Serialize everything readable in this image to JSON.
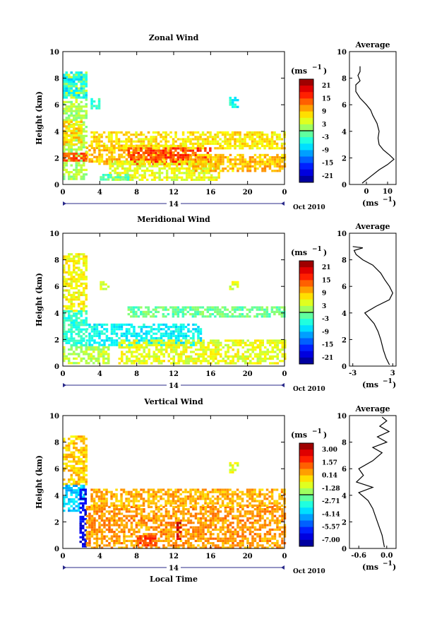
{
  "chart_data": [
    {
      "type": "heatmap",
      "title": "Zonal Wind",
      "ylabel": "Height (km)",
      "xlabel": "",
      "xlim": [
        0,
        24
      ],
      "ylim": [
        0,
        10
      ],
      "x_ticks": [
        "0",
        "4",
        "8",
        "12",
        "16",
        "20",
        "0"
      ],
      "y_ticks": [
        "0",
        "2",
        "4",
        "6",
        "8",
        "10"
      ],
      "date_day": "14",
      "date_label": "Oct 2010",
      "colorbar": {
        "unit": "(ms",
        "unit_exp": "−1",
        "unit_close": ")",
        "ticks": [
          "21",
          "15",
          "9",
          "3",
          "-3",
          "-9",
          "-15",
          "-21"
        ],
        "range": [
          -24,
          24
        ]
      },
      "fields": [
        {
          "x": [
            0,
            2.5
          ],
          "y": [
            0.5,
            8.5
          ],
          "value": 2
        },
        {
          "x": [
            0,
            2.5
          ],
          "y": [
            6.5,
            8.5
          ],
          "value": -6
        },
        {
          "x": [
            0,
            2.0
          ],
          "y": [
            3.0,
            4.8
          ],
          "value": 8
        },
        {
          "x": [
            0,
            2.5
          ],
          "y": [
            1.8,
            2.4
          ],
          "value": 14
        },
        {
          "x": [
            2.5,
            14
          ],
          "y": [
            1.5,
            3.0
          ],
          "value": 9
        },
        {
          "x": [
            3,
            24
          ],
          "y": [
            2.8,
            4.0
          ],
          "value": 7
        },
        {
          "x": [
            7,
            16
          ],
          "y": [
            1.5,
            2.8
          ],
          "value": 15
        },
        {
          "x": [
            5,
            17
          ],
          "y": [
            0.3,
            1.8
          ],
          "value": 5
        },
        {
          "x": [
            14,
            24
          ],
          "y": [
            1.0,
            2.3
          ],
          "value": 9
        },
        {
          "x": [
            4,
            7
          ],
          "y": [
            0.3,
            0.8
          ],
          "value": -2
        },
        {
          "x": [
            18,
            19
          ],
          "y": [
            5.9,
            6.6
          ],
          "value": -5
        },
        {
          "x": [
            3,
            4
          ],
          "y": [
            5.8,
            6.5
          ],
          "value": -4
        }
      ],
      "profile": {
        "title": "Average",
        "x_ticks": [
          "0",
          "10"
        ],
        "xlabel": "(ms",
        "xlabel_exp": "−1",
        "xlabel_close": ")",
        "xlim": [
          -8,
          14
        ],
        "ylim": [
          0,
          10
        ],
        "y_ticks": [
          "0",
          "2",
          "4",
          "6",
          "8",
          "10"
        ],
        "points": [
          [
            -2,
            0.1
          ],
          [
            2,
            0.6
          ],
          [
            6,
            1.1
          ],
          [
            10,
            1.5
          ],
          [
            13,
            1.9
          ],
          [
            11,
            2.2
          ],
          [
            8,
            2.6
          ],
          [
            6,
            3
          ],
          [
            5.5,
            3.5
          ],
          [
            6,
            4
          ],
          [
            5,
            4.6
          ],
          [
            3,
            5.2
          ],
          [
            2,
            5.6
          ],
          [
            0,
            6
          ],
          [
            -3,
            6.5
          ],
          [
            -5,
            7
          ],
          [
            -5,
            7.5
          ],
          [
            -3,
            7.8
          ],
          [
            -4,
            8.2
          ],
          [
            -3,
            8.5
          ],
          [
            -3,
            8.9
          ]
        ]
      }
    },
    {
      "type": "heatmap",
      "title": "Meridional Wind",
      "ylabel": "Height (km)",
      "xlabel": "",
      "xlim": [
        0,
        24
      ],
      "ylim": [
        0,
        10
      ],
      "x_ticks": [
        "0",
        "4",
        "8",
        "12",
        "16",
        "20",
        "0"
      ],
      "y_ticks": [
        "0",
        "2",
        "4",
        "6",
        "8",
        "10"
      ],
      "date_day": "14",
      "date_label": "Oct 2010",
      "colorbar": {
        "unit": "(ms",
        "unit_exp": "−1",
        "unit_close": ")",
        "ticks": [
          "21",
          "15",
          "9",
          "3",
          "-3",
          "-9",
          "-15",
          "-21"
        ],
        "range": [
          -24,
          24
        ]
      },
      "fields": [
        {
          "x": [
            0,
            2.5
          ],
          "y": [
            4.2,
            8.5
          ],
          "value": 6
        },
        {
          "x": [
            0,
            2.5
          ],
          "y": [
            1.5,
            4.2
          ],
          "value": -4
        },
        {
          "x": [
            2.5,
            15
          ],
          "y": [
            1.5,
            3.2
          ],
          "value": -6
        },
        {
          "x": [
            6,
            24
          ],
          "y": [
            0.2,
            2.0
          ],
          "value": 5
        },
        {
          "x": [
            7,
            24
          ],
          "y": [
            3.8,
            4.5
          ],
          "value": -1
        },
        {
          "x": [
            0,
            5
          ],
          "y": [
            0.3,
            1.5
          ],
          "value": 3
        },
        {
          "x": [
            18,
            19
          ],
          "y": [
            5.8,
            6.4
          ],
          "value": 5
        },
        {
          "x": [
            4,
            5
          ],
          "y": [
            5.8,
            6.4
          ],
          "value": 4
        }
      ],
      "profile": {
        "title": "Average",
        "x_ticks": [
          "-3",
          "3"
        ],
        "xlabel": "(ms",
        "xlabel_exp": "−1",
        "xlabel_close": ")",
        "xlim": [
          -3.5,
          3.5
        ],
        "ylim": [
          0,
          10
        ],
        "y_ticks": [
          "0",
          "2",
          "4",
          "6",
          "8",
          "10"
        ],
        "points": [
          [
            2.5,
            0.1
          ],
          [
            2,
            0.6
          ],
          [
            1.6,
            1.2
          ],
          [
            1.2,
            2
          ],
          [
            0.8,
            2.6
          ],
          [
            0.2,
            3.2
          ],
          [
            -0.5,
            3.6
          ],
          [
            -1.2,
            4
          ],
          [
            0.5,
            4.5
          ],
          [
            2.5,
            5
          ],
          [
            3,
            5.5
          ],
          [
            2.5,
            6
          ],
          [
            1.8,
            6.5
          ],
          [
            1.2,
            7
          ],
          [
            0,
            7.6
          ],
          [
            -1.5,
            8
          ],
          [
            -2.5,
            8.4
          ],
          [
            -2.8,
            8.7
          ],
          [
            -1.5,
            8.9
          ],
          [
            -3,
            9
          ]
        ]
      }
    },
    {
      "type": "heatmap",
      "title": "Vertical Wind",
      "ylabel": "Height (km)",
      "xlabel": "Local Time",
      "xlim": [
        0,
        24
      ],
      "ylim": [
        0,
        10
      ],
      "x_ticks": [
        "0",
        "4",
        "8",
        "12",
        "16",
        "20",
        "0"
      ],
      "y_ticks": [
        "0",
        "2",
        "4",
        "6",
        "8",
        "10"
      ],
      "date_day": "14",
      "date_label": "Oct 2010",
      "colorbar": {
        "unit": "(ms",
        "unit_exp": "−1",
        "unit_close": ")",
        "ticks": [
          "3.00",
          "1.57",
          "0.14",
          "-1.28",
          "-2.71",
          "-4.14",
          "-5.57",
          "-7.00"
        ],
        "range": [
          -7.7,
          3.7
        ]
      },
      "fields": [
        {
          "x": [
            0,
            2.5
          ],
          "y": [
            4.8,
            8.5
          ],
          "value": 0
        },
        {
          "x": [
            0,
            2.2
          ],
          "y": [
            2.8,
            4.8
          ],
          "value": -4
        },
        {
          "x": [
            1.8,
            2.5
          ],
          "y": [
            0.2,
            4.5
          ],
          "value": -6.5
        },
        {
          "x": [
            2.5,
            24
          ],
          "y": [
            0.1,
            3.2
          ],
          "value": 0.6
        },
        {
          "x": [
            3,
            24
          ],
          "y": [
            3.2,
            4.5
          ],
          "value": 0.3
        },
        {
          "x": [
            8,
            10
          ],
          "y": [
            0.2,
            1.0
          ],
          "value": 1.5
        },
        {
          "x": [
            12.3,
            12.7
          ],
          "y": [
            0.8,
            2.0
          ],
          "value": 2.8
        },
        {
          "x": [
            18,
            19
          ],
          "y": [
            5.7,
            6.5
          ],
          "value": -0.8
        }
      ],
      "profile": {
        "title": "Average",
        "x_ticks": [
          "-0.6",
          "0.0"
        ],
        "xlabel": "(ms",
        "xlabel_exp": "−1",
        "xlabel_close": ")",
        "xlim": [
          -0.8,
          0.2
        ],
        "ylim": [
          0,
          10
        ],
        "y_ticks": [
          "0",
          "2",
          "4",
          "6",
          "8",
          "10"
        ],
        "points": [
          [
            -0.05,
            0.1
          ],
          [
            -0.1,
            1
          ],
          [
            -0.2,
            2
          ],
          [
            -0.3,
            3
          ],
          [
            -0.4,
            3.6
          ],
          [
            -0.6,
            4.2
          ],
          [
            -0.3,
            4.6
          ],
          [
            -0.65,
            5
          ],
          [
            -0.5,
            5.5
          ],
          [
            -0.6,
            6
          ],
          [
            -0.3,
            6.6
          ],
          [
            -0.1,
            7.2
          ],
          [
            -0.3,
            7.6
          ],
          [
            0,
            8
          ],
          [
            -0.2,
            8.4
          ],
          [
            0.05,
            8.8
          ],
          [
            -0.15,
            9.2
          ],
          [
            0,
            9.6
          ],
          [
            -0.1,
            9.9
          ]
        ]
      }
    }
  ]
}
